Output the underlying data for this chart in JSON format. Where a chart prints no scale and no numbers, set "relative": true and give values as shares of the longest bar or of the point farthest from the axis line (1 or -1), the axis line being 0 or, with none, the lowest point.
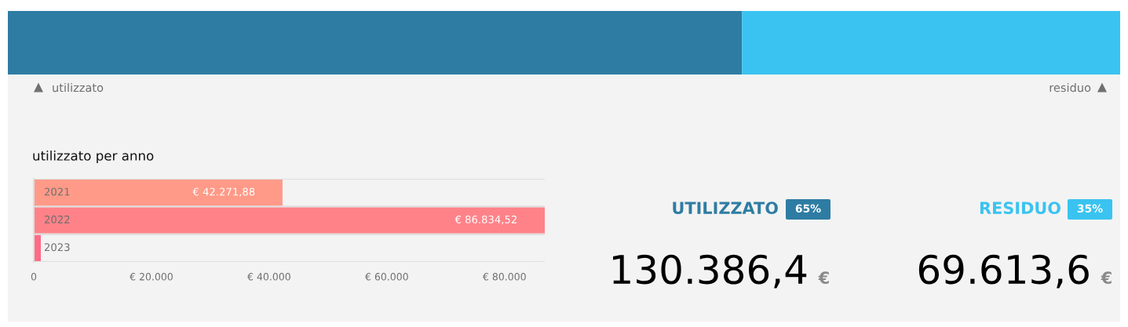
{
  "chart_data": [
    {
      "type": "bar",
      "orientation": "horizontal",
      "stacked": true,
      "relative": true,
      "categories": [
        null
      ],
      "series": [
        {
          "name": "utilizzato",
          "color": "#2e7ca3",
          "values": [
            0.66
          ]
        },
        {
          "name": "residuo",
          "color": "#3ac3f0",
          "values": [
            0.34
          ]
        }
      ]
    },
    {
      "type": "bar",
      "orientation": "horizontal",
      "title": "utilizzato per anno",
      "categories": [
        "2021",
        "2022",
        "2023"
      ],
      "values": [
        42271.88,
        86834.52,
        1200
      ],
      "colors": [
        "#ff9a88",
        "#ff8289",
        "#ff6b87"
      ],
      "value_labels": [
        "€ 42.271,88",
        "€ 86.834,52",
        null
      ],
      "xlim": [
        0,
        86834.52
      ],
      "xticks": [
        0,
        {
          "value": 20000,
          "label": "€ 20.000"
        },
        {
          "value": 40000,
          "label": "€ 40.000"
        },
        {
          "value": 60000,
          "label": "€ 60.000"
        },
        {
          "value": 80000,
          "label": "€ 80.000"
        }
      ]
    },
    {
      "type": "other",
      "annotations": [
        "UTILIZZATO",
        "65%",
        "130.386,4",
        "€",
        "RESIDUO",
        "35%",
        "69.613,6",
        "€"
      ]
    }
  ]
}
